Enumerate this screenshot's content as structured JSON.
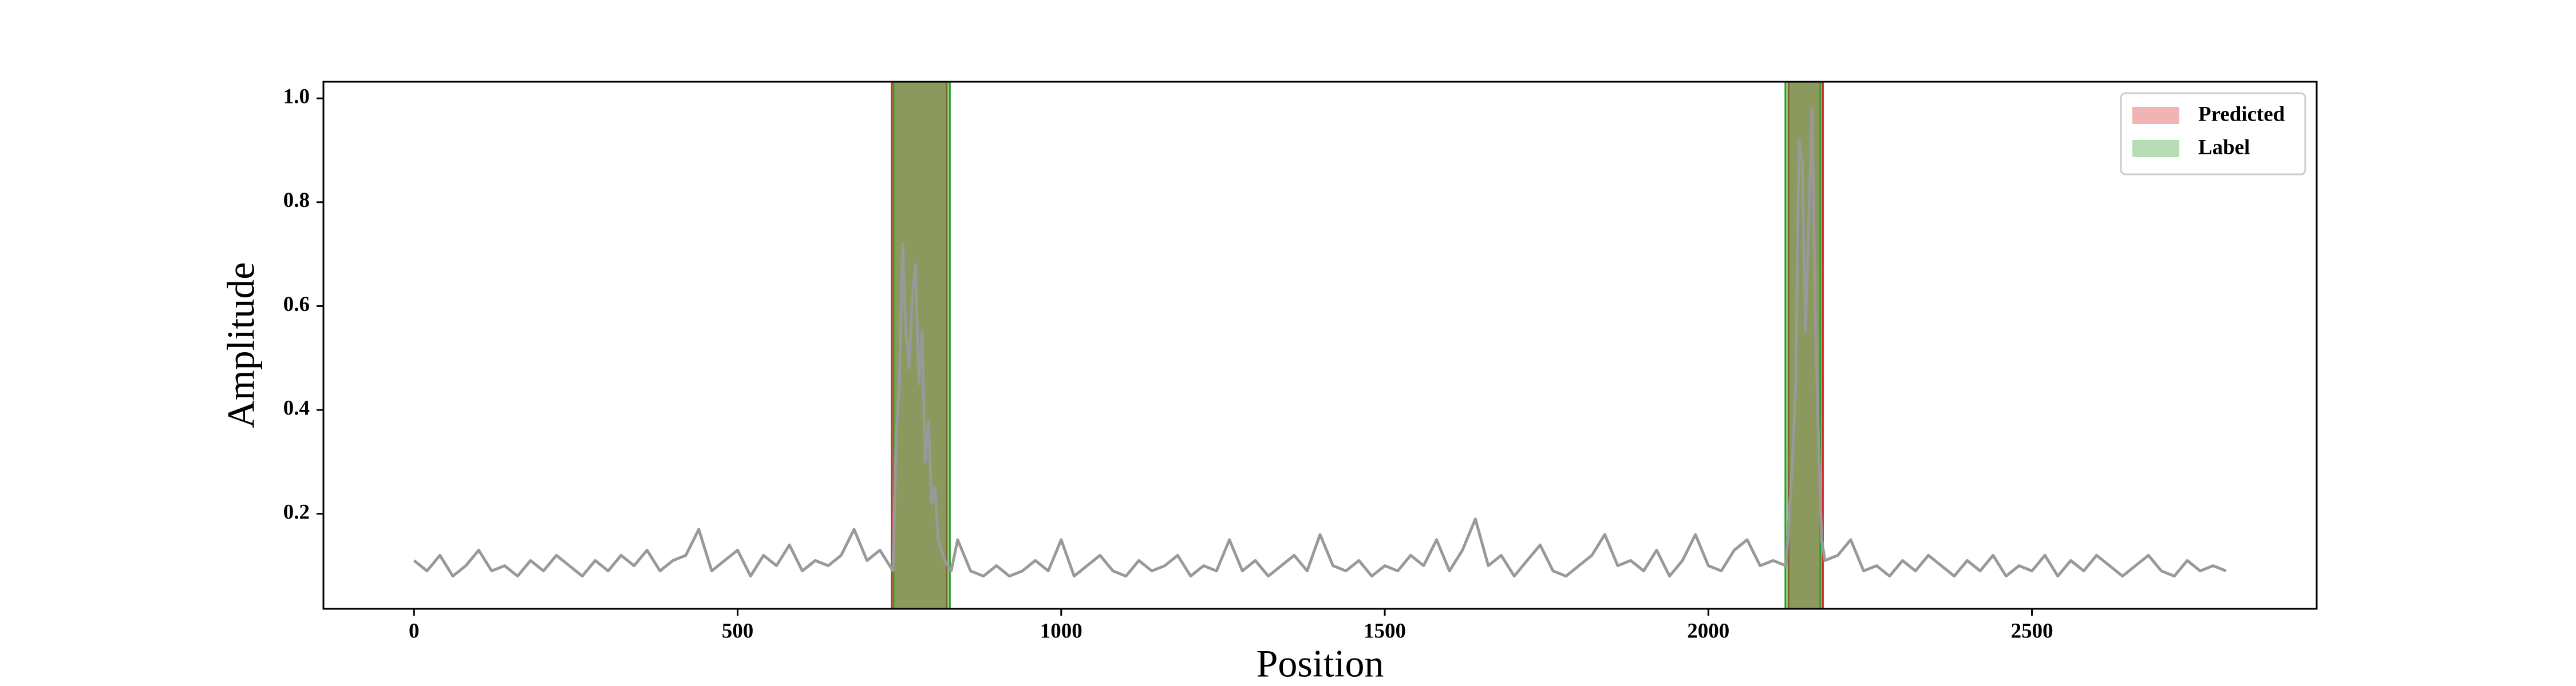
{
  "chart_data": {
    "type": "line",
    "xlabel": "Position",
    "ylabel": "Amplitude",
    "x": [
      0,
      20,
      40,
      60,
      80,
      100,
      120,
      140,
      160,
      180,
      200,
      220,
      240,
      260,
      280,
      300,
      320,
      340,
      360,
      380,
      400,
      420,
      440,
      460,
      480,
      500,
      520,
      540,
      560,
      580,
      600,
      620,
      640,
      660,
      680,
      700,
      720,
      740,
      745,
      750,
      755,
      760,
      765,
      770,
      775,
      780,
      785,
      790,
      795,
      800,
      805,
      810,
      820,
      830,
      840,
      860,
      880,
      900,
      920,
      940,
      960,
      980,
      1000,
      1020,
      1040,
      1060,
      1080,
      1100,
      1120,
      1140,
      1160,
      1180,
      1200,
      1220,
      1240,
      1260,
      1280,
      1300,
      1320,
      1340,
      1360,
      1380,
      1400,
      1420,
      1440,
      1460,
      1480,
      1500,
      1520,
      1540,
      1560,
      1580,
      1600,
      1620,
      1640,
      1660,
      1680,
      1700,
      1720,
      1740,
      1760,
      1780,
      1800,
      1820,
      1840,
      1860,
      1880,
      1900,
      1920,
      1940,
      1960,
      1980,
      2000,
      2020,
      2040,
      2060,
      2080,
      2100,
      2120,
      2130,
      2135,
      2140,
      2145,
      2150,
      2155,
      2160,
      2165,
      2170,
      2175,
      2180,
      2200,
      2220,
      2240,
      2260,
      2280,
      2300,
      2320,
      2340,
      2360,
      2380,
      2400,
      2420,
      2440,
      2460,
      2480,
      2500,
      2520,
      2540,
      2560,
      2580,
      2600,
      2620,
      2640,
      2660,
      2680,
      2700,
      2720,
      2740,
      2760,
      2780,
      2800
    ],
    "values": [
      0.11,
      0.09,
      0.12,
      0.08,
      0.1,
      0.13,
      0.09,
      0.1,
      0.08,
      0.11,
      0.09,
      0.12,
      0.1,
      0.08,
      0.11,
      0.09,
      0.12,
      0.1,
      0.13,
      0.09,
      0.11,
      0.12,
      0.17,
      0.09,
      0.11,
      0.13,
      0.08,
      0.12,
      0.1,
      0.14,
      0.09,
      0.11,
      0.1,
      0.12,
      0.17,
      0.11,
      0.13,
      0.09,
      0.35,
      0.45,
      0.72,
      0.55,
      0.48,
      0.62,
      0.68,
      0.45,
      0.55,
      0.3,
      0.38,
      0.22,
      0.25,
      0.15,
      0.11,
      0.09,
      0.15,
      0.09,
      0.08,
      0.1,
      0.08,
      0.09,
      0.11,
      0.09,
      0.15,
      0.08,
      0.1,
      0.12,
      0.09,
      0.08,
      0.11,
      0.09,
      0.1,
      0.12,
      0.08,
      0.1,
      0.09,
      0.15,
      0.09,
      0.11,
      0.08,
      0.1,
      0.12,
      0.09,
      0.16,
      0.1,
      0.09,
      0.11,
      0.08,
      0.1,
      0.09,
      0.12,
      0.1,
      0.15,
      0.09,
      0.13,
      0.19,
      0.1,
      0.12,
      0.08,
      0.11,
      0.14,
      0.09,
      0.08,
      0.1,
      0.12,
      0.16,
      0.1,
      0.11,
      0.09,
      0.13,
      0.08,
      0.11,
      0.16,
      0.1,
      0.09,
      0.13,
      0.15,
      0.1,
      0.11,
      0.1,
      0.3,
      0.45,
      0.92,
      0.88,
      0.55,
      0.75,
      0.98,
      0.6,
      0.35,
      0.15,
      0.11,
      0.12,
      0.15,
      0.09,
      0.1,
      0.08,
      0.11,
      0.09,
      0.12,
      0.1,
      0.08,
      0.11,
      0.09,
      0.12,
      0.08,
      0.1,
      0.09,
      0.12,
      0.08,
      0.11,
      0.09,
      0.12,
      0.1,
      0.08,
      0.1,
      0.12,
      0.09,
      0.08,
      0.11,
      0.09,
      0.1,
      0.09
    ],
    "line_color": "#999999",
    "spans": [
      {
        "name": "Predicted",
        "color": "#d62728",
        "ranges": [
          [
            738,
            823
          ],
          [
            2124,
            2177
          ]
        ]
      },
      {
        "name": "Label",
        "color": "#2ca02c",
        "ranges": [
          [
            741,
            828
          ],
          [
            2119,
            2173
          ]
        ]
      }
    ],
    "legend": "upper right",
    "xlim": [
      -140,
      2940
    ],
    "xticks": [
      0,
      500,
      1000,
      1500,
      2000,
      2500
    ],
    "ylim": [
      0.017,
      1.032
    ],
    "yticks": [
      0.2,
      0.4,
      0.6,
      0.8,
      {
        "value": 1,
        "label": "1.0"
      }
    ]
  }
}
